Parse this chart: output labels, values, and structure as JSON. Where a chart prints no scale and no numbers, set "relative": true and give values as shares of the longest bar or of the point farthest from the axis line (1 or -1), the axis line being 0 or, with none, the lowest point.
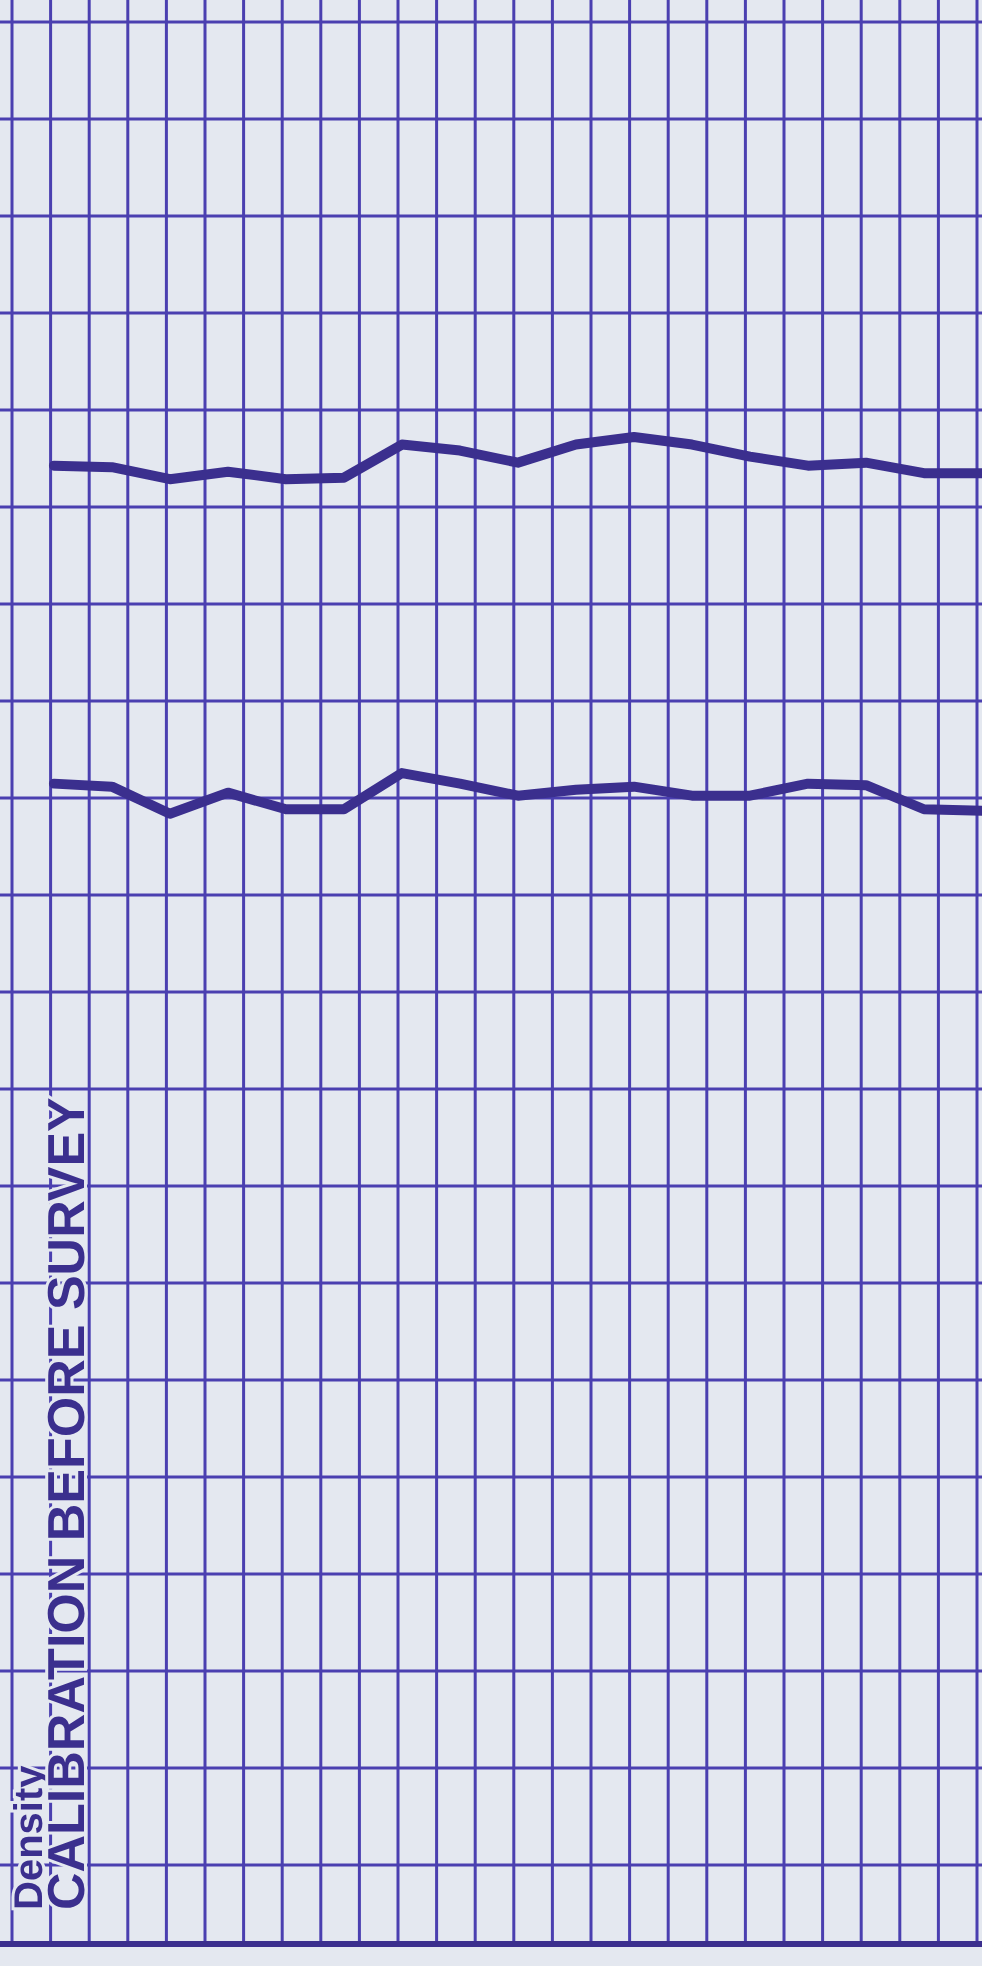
{
  "chart_data": {
    "type": "line",
    "relative": true,
    "grid": true,
    "marker": "none",
    "ylabel": "Density",
    "annotations": [
      "CALIBRATION BEFORE SURVEY"
    ],
    "categories": [
      null,
      null,
      null,
      null,
      null,
      null,
      null,
      null,
      null,
      null,
      null,
      null,
      null,
      null,
      null,
      null,
      null
    ],
    "series": [
      {
        "color": "#3b2f8e",
        "values": [
          0.981,
          0.98,
          0.972,
          0.977,
          0.972,
          0.973,
          0.995,
          0.991,
          0.983,
          0.995,
          1,
          0.995,
          0.987,
          0.981,
          0.983,
          0.976,
          0.976
        ]
      },
      {
        "color": "#3b2f8e",
        "values": [
          0.77,
          0.768,
          0.75,
          0.764,
          0.753,
          0.753,
          0.777,
          0.77,
          0.762,
          0.766,
          0.768,
          0.762,
          0.762,
          0.77,
          0.769,
          0.753,
          0.752
        ]
      }
    ]
  }
}
